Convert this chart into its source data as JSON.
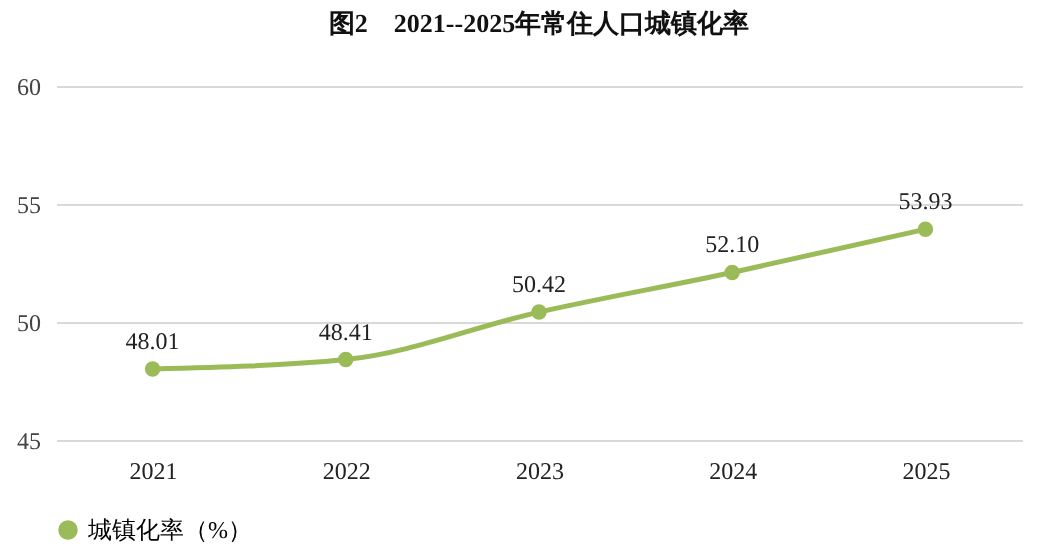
{
  "chart_data": {
    "type": "line",
    "title": "图2　2021--2025年常住人口城镇化率",
    "categories": [
      "2021",
      "2022",
      "2023",
      "2024",
      "2025"
    ],
    "series": [
      {
        "name": "城镇化率（%）",
        "color": "#9bbb59",
        "values": [
          48.01,
          48.41,
          50.42,
          52.1,
          53.93
        ]
      }
    ],
    "value_labels": [
      "48.01",
      "48.41",
      "50.42",
      "52.10",
      "53.93"
    ],
    "ylim": [
      45,
      60
    ],
    "yticks": [
      45,
      50,
      55,
      60
    ],
    "grid": "y",
    "legend": "bottom",
    "marker": "circle",
    "line_style": "solid"
  }
}
